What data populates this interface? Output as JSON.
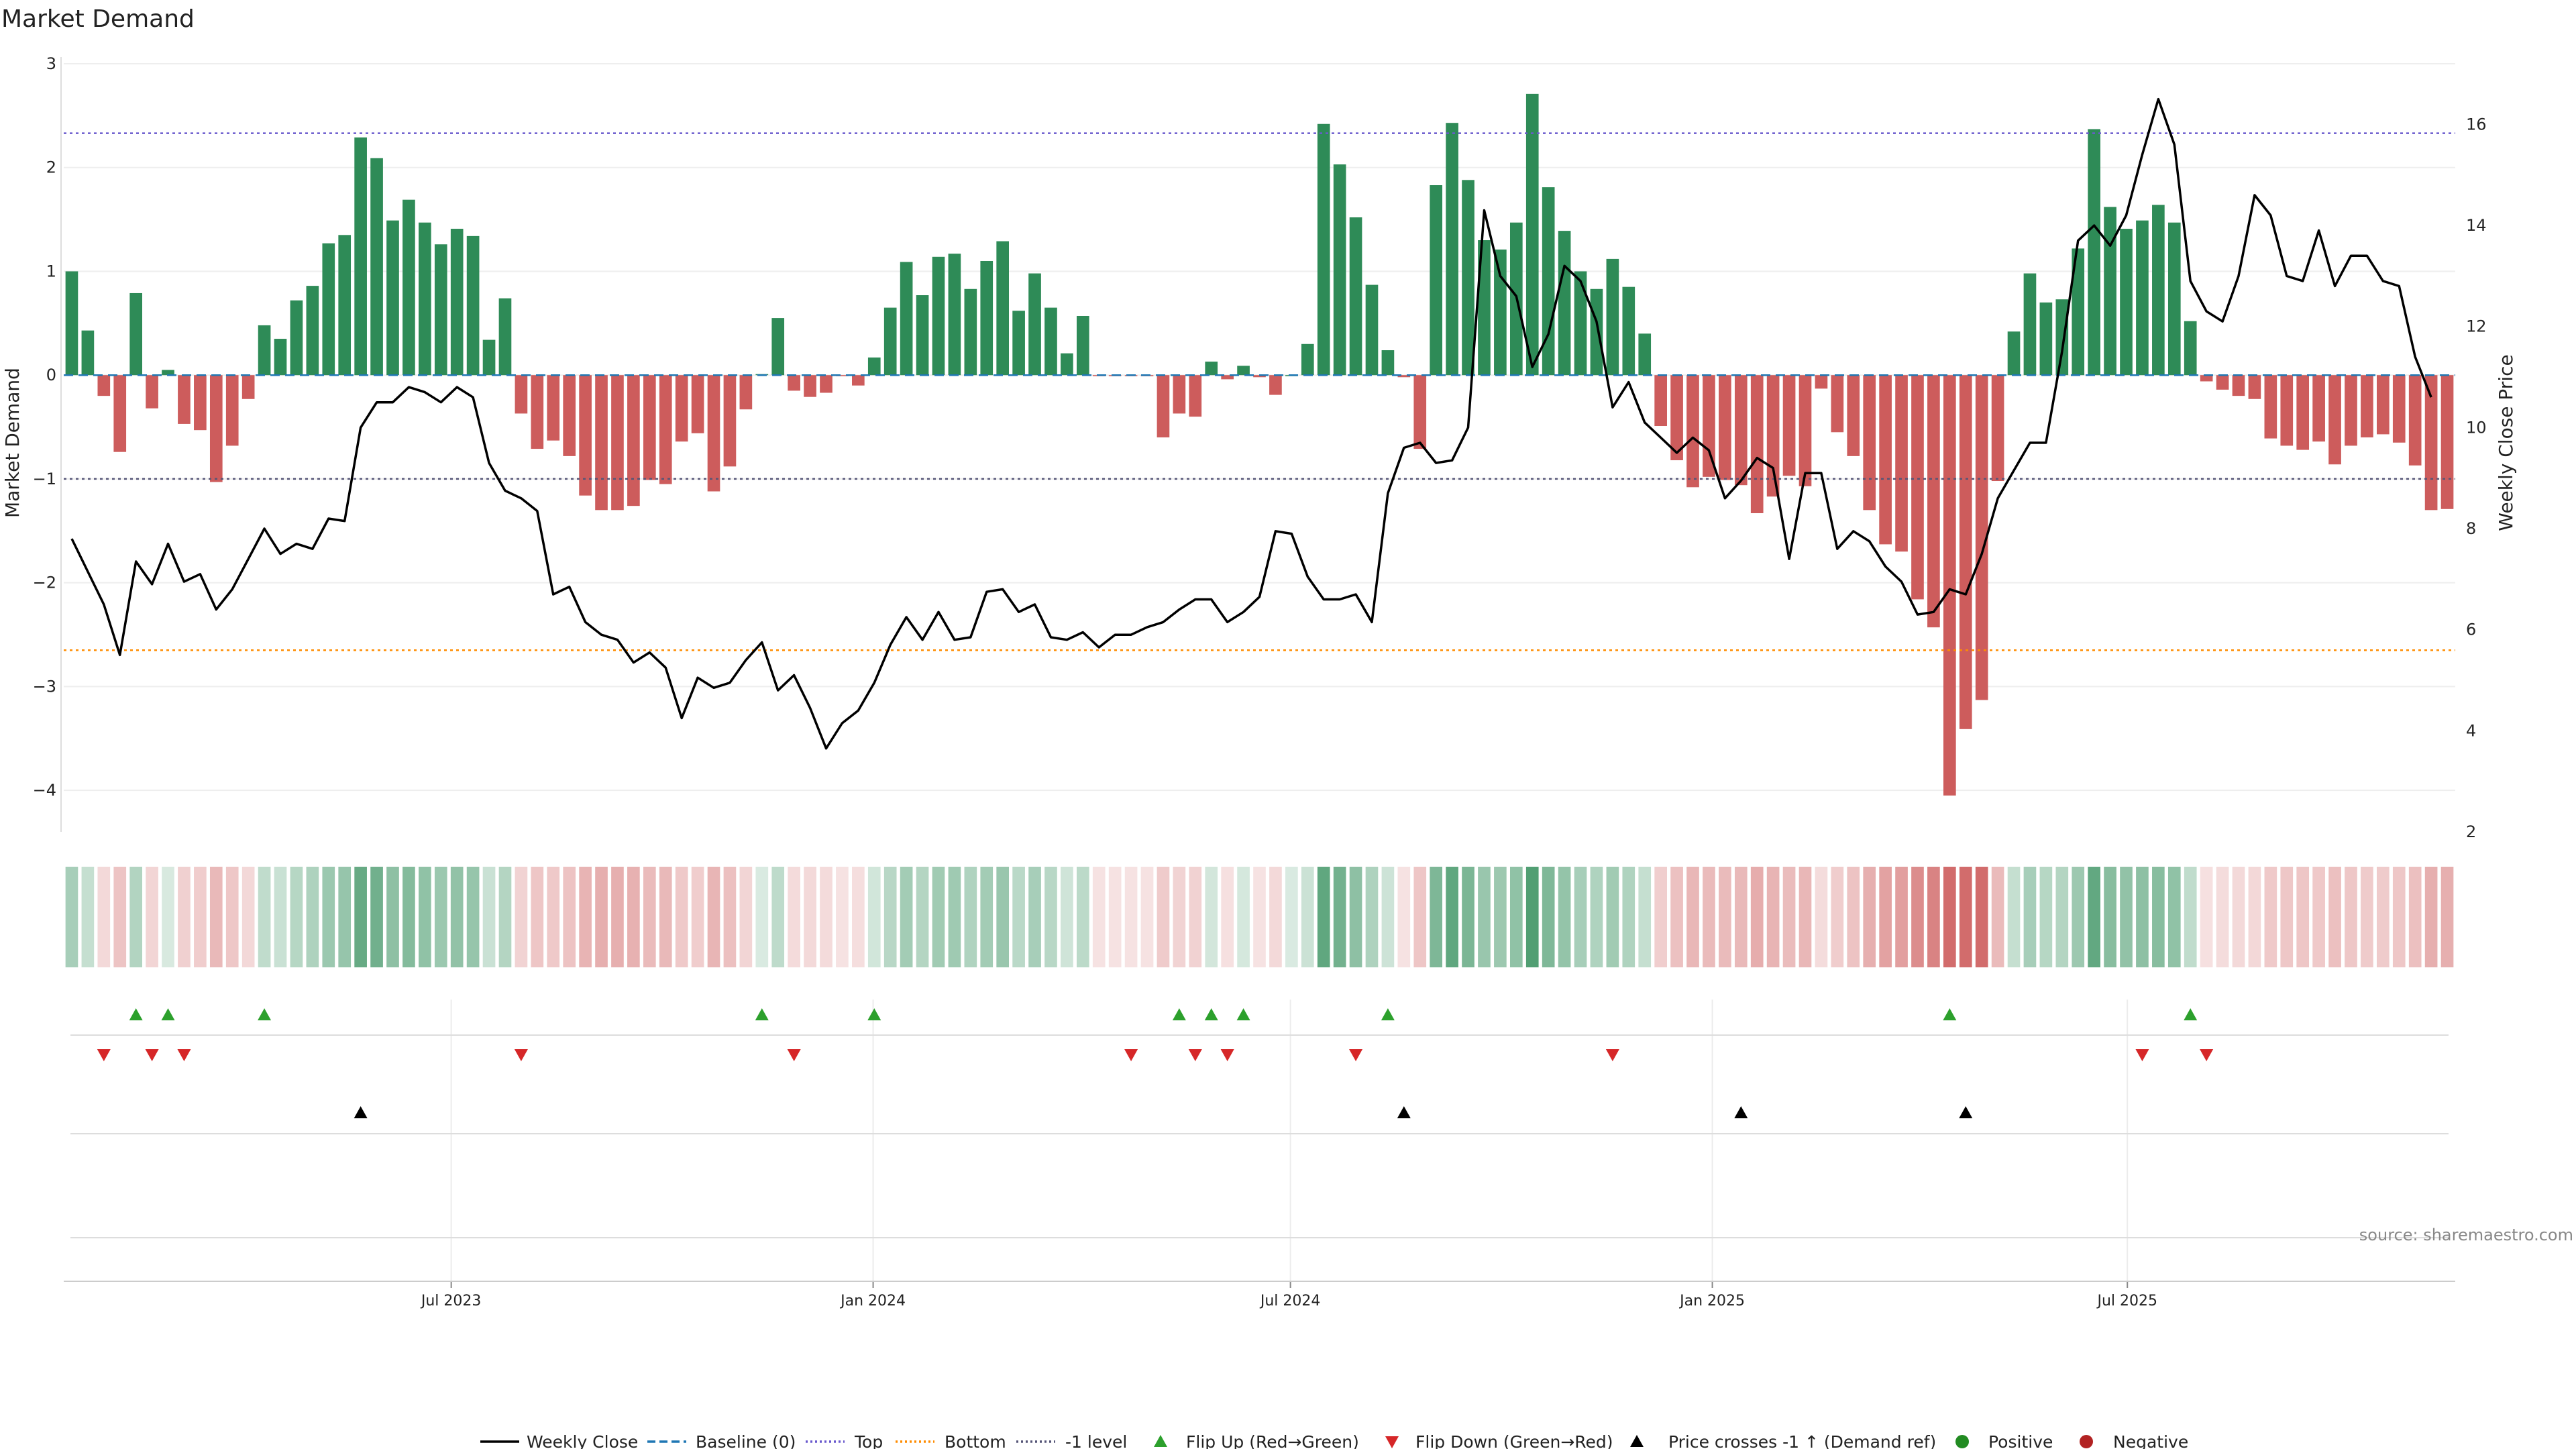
{
  "chart_data": {
    "type": "bar+line",
    "title": "Market Demand",
    "ylabel_left": "Market Demand",
    "ylabel_right": "Weekly Close Price",
    "source": "source: sharemaestro.com",
    "ylim_left": [
      -4.4,
      3.0
    ],
    "yticks_left": [
      3,
      2,
      1,
      0,
      -1,
      -2,
      -3,
      -4
    ],
    "ytick_labels_left": [
      "3",
      "2",
      "1",
      "0",
      "−1",
      "−2",
      "−3",
      "−4"
    ],
    "ylim_right": [
      2,
      17.2
    ],
    "yticks_right": [
      16,
      14,
      12,
      10,
      8,
      6,
      4,
      2
    ],
    "x_start": "2023-01-13",
    "x_end": "2025-11-21",
    "x_tick_dates": [
      "2023-07-01",
      "2024-01-01",
      "2024-07-01",
      "2025-01-01",
      "2025-07-01"
    ],
    "x_tick_labels": [
      "Jul 2023",
      "Jan 2024",
      "Jul 2024",
      "Jan 2025",
      "Jul 2025"
    ],
    "reference_lines": {
      "top": 2.33,
      "bottom": -2.65,
      "minus_one": -1.0,
      "baseline": 0
    },
    "colors": {
      "positive": "#2e8b57",
      "negative": "#cd5c5c",
      "price": "#000000",
      "top": "#6a5acd",
      "bottom": "#ff8c00",
      "minus_one": "#555577",
      "baseline": "#1f77b4",
      "flip_up": "#2ca02c",
      "flip_down": "#d62728",
      "cross": "#000000",
      "legend_positive": "#228b22",
      "legend_negative": "#b22222"
    },
    "demand": [
      1.0,
      0.43,
      -0.2,
      -0.74,
      0.79,
      -0.32,
      0.05,
      -0.47,
      -0.53,
      -1.03,
      -0.68,
      -0.23,
      0.48,
      0.35,
      0.72,
      0.86,
      1.27,
      1.35,
      2.29,
      2.09,
      1.49,
      1.69,
      1.47,
      1.26,
      1.41,
      1.34,
      0.34,
      0.74,
      -0.37,
      -0.71,
      -0.63,
      -0.78,
      -1.16,
      -1.3,
      -1.3,
      -1.26,
      -1.01,
      -1.05,
      -0.64,
      -0.56,
      -1.12,
      -0.88,
      -0.33,
      0.01,
      0.55,
      -0.15,
      -0.21,
      -0.17,
      -0.01,
      -0.1,
      0.17,
      0.65,
      1.09,
      0.77,
      1.14,
      1.17,
      0.83,
      1.1,
      1.29,
      0.62,
      0.98,
      0.65,
      0.21,
      0.57,
      -0.01,
      -0.01,
      -0.01,
      -0.01,
      -0.6,
      -0.37,
      -0.4,
      0.13,
      -0.04,
      0.09,
      -0.02,
      -0.19,
      0.0,
      0.3,
      2.42,
      2.03,
      1.52,
      0.87,
      0.24,
      -0.02,
      -0.71,
      1.83,
      2.43,
      1.88,
      1.3,
      1.21,
      1.47,
      2.71,
      1.81,
      1.39,
      1.0,
      0.83,
      1.12,
      0.85,
      0.4,
      -0.49,
      -0.82,
      -1.08,
      -0.98,
      -1.01,
      -1.06,
      -1.33,
      -1.17,
      -0.97,
      -1.07,
      -0.13,
      -0.55,
      -0.78,
      -1.3,
      -1.63,
      -1.7,
      -2.16,
      -2.43,
      -4.05,
      -3.41,
      -3.13,
      -1.02,
      0.42,
      0.98,
      0.7,
      0.73,
      1.22,
      2.37,
      1.62,
      1.41,
      1.49,
      1.64,
      1.47,
      0.52,
      -0.06,
      -0.14,
      -0.2,
      -0.23,
      -0.61,
      -0.68,
      -0.72,
      -0.64,
      -0.86,
      -0.68,
      -0.6,
      -0.57,
      -0.65,
      -0.87,
      -1.3,
      -1.29
    ],
    "price": [
      7.8,
      7.15,
      6.5,
      5.5,
      7.35,
      6.9,
      7.7,
      6.95,
      7.1,
      6.4,
      6.8,
      7.4,
      8.0,
      7.5,
      7.7,
      7.6,
      8.2,
      8.15,
      10.0,
      10.5,
      10.5,
      10.8,
      10.7,
      10.5,
      10.8,
      10.6,
      9.3,
      8.75,
      8.6,
      8.35,
      6.7,
      6.85,
      6.15,
      5.9,
      5.8,
      5.35,
      5.55,
      5.25,
      4.25,
      5.05,
      4.85,
      4.95,
      5.4,
      5.75,
      4.8,
      5.1,
      4.45,
      3.65,
      4.15,
      4.4,
      4.95,
      5.7,
      6.25,
      5.8,
      6.35,
      5.8,
      5.85,
      6.75,
      6.8,
      6.35,
      6.5,
      5.85,
      5.8,
      5.95,
      5.65,
      5.9,
      5.9,
      6.05,
      6.15,
      6.4,
      6.6,
      6.6,
      6.15,
      6.35,
      6.65,
      7.95,
      7.9,
      7.05,
      6.6,
      6.6,
      6.7,
      6.15,
      8.7,
      9.6,
      9.7,
      9.3,
      9.35,
      10.0,
      14.3,
      13.0,
      12.6,
      11.2,
      11.85,
      13.2,
      12.9,
      12.1,
      10.4,
      10.9,
      10.1,
      9.8,
      9.5,
      9.8,
      9.55,
      8.6,
      8.95,
      9.4,
      9.2,
      7.4,
      9.1,
      9.1,
      7.6,
      7.95,
      7.75,
      7.25,
      6.95,
      6.3,
      6.35,
      6.8,
      6.7,
      7.5,
      8.6,
      9.15,
      9.7,
      9.7,
      11.5,
      13.7,
      14.0,
      13.6,
      14.2,
      15.4,
      16.5,
      15.6,
      12.9,
      12.3,
      12.1,
      13.0,
      14.6,
      14.2,
      13.0,
      12.9,
      13.9,
      12.8,
      13.4,
      13.4,
      12.9,
      12.8,
      11.4,
      10.6
    ],
    "flip_up_idx": [
      4,
      6,
      12,
      43,
      50,
      69,
      71,
      73,
      82,
      117,
      132
    ],
    "flip_down_idx": [
      2,
      5,
      7,
      28,
      45,
      66,
      70,
      72,
      80,
      96,
      129,
      133
    ],
    "cross_idx": [
      18,
      83,
      104,
      118
    ],
    "legend": [
      "Weekly Close",
      "Baseline (0)",
      "Top",
      "Bottom",
      "-1 level",
      "Flip Up (Red→Green)",
      "Flip Down (Green→Red)",
      "Price crosses -1 ↑ (Demand ref)",
      "Positive",
      "Negative"
    ]
  }
}
